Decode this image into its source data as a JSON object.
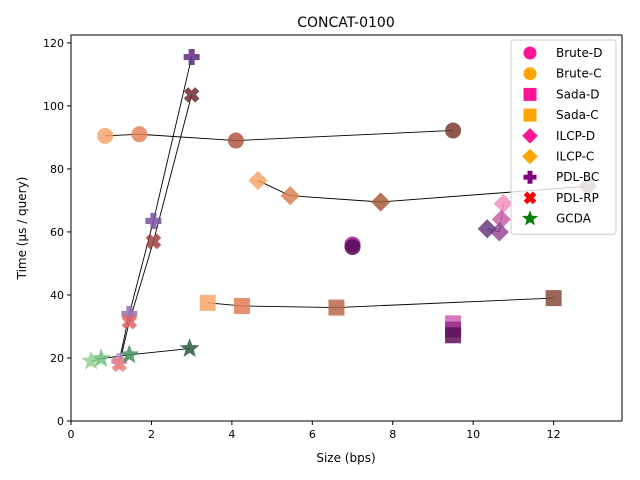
{
  "chart_data": {
    "type": "scatter",
    "title": "CONCAT-0100",
    "xlabel": "Size (bps)",
    "ylabel": "Time (µs / query)",
    "xlim": [
      0,
      13.7
    ],
    "ylim": [
      0,
      122.5
    ],
    "xticks": [
      0,
      2,
      4,
      6,
      8,
      10,
      12
    ],
    "yticks": [
      0,
      20,
      40,
      60,
      80,
      100,
      120
    ],
    "grid": false,
    "legend_position": "top-right",
    "legend": [
      {
        "label": "Brute-D",
        "marker": "circle",
        "color": "#ff1493"
      },
      {
        "label": "Brute-C",
        "marker": "circle",
        "color": "#ffa500"
      },
      {
        "label": "Sada-D",
        "marker": "square",
        "color": "#ff1493"
      },
      {
        "label": "Sada-C",
        "marker": "square",
        "color": "#ffa500"
      },
      {
        "label": "ILCP-D",
        "marker": "diamond",
        "color": "#ff1493"
      },
      {
        "label": "ILCP-C",
        "marker": "diamond",
        "color": "#ffa500"
      },
      {
        "label": "PDL-BC",
        "marker": "plus",
        "color": "#800080"
      },
      {
        "label": "PDL-RP",
        "marker": "x",
        "color": "#ff0000"
      },
      {
        "label": "GCDA",
        "marker": "star",
        "color": "#008000"
      }
    ],
    "series": [
      {
        "name": "Brute-D",
        "marker": "circle",
        "points": [
          [
            7.0,
            56.0,
            "#9e1b8e"
          ],
          [
            7.0,
            55.2,
            "#5a0a5a"
          ]
        ]
      },
      {
        "name": "Brute-C",
        "marker": "circle",
        "points": [
          [
            0.85,
            90.5,
            "#f4a46b"
          ],
          [
            1.7,
            91.0,
            "#e6855a"
          ],
          [
            4.1,
            89.0,
            "#b0583f"
          ],
          [
            9.5,
            92.2,
            "#7a3a30"
          ]
        ]
      },
      {
        "name": "Sada-D",
        "marker": "square",
        "points": [
          [
            9.5,
            31.0,
            "#d062b5"
          ],
          [
            9.5,
            29.0,
            "#9a2a88"
          ],
          [
            9.5,
            27.2,
            "#5a1058"
          ]
        ]
      },
      {
        "name": "Sada-C",
        "marker": "square",
        "points": [
          [
            3.4,
            37.5,
            "#f6a56a"
          ],
          [
            4.25,
            36.5,
            "#e07d52"
          ],
          [
            6.6,
            36.0,
            "#b86848"
          ],
          [
            12.0,
            39.0,
            "#8a4a3a"
          ]
        ]
      },
      {
        "name": "ILCP-D",
        "marker": "diamond",
        "points": [
          [
            10.75,
            69.0,
            "#f090c0"
          ],
          [
            10.7,
            64.0,
            "#c860a8"
          ],
          [
            10.65,
            60.0,
            "#9a4a96"
          ],
          [
            10.35,
            61.0,
            "#6a3a80"
          ]
        ]
      },
      {
        "name": "ILCP-C",
        "marker": "diamond",
        "points": [
          [
            4.65,
            76.3,
            "#f4a46a"
          ],
          [
            5.45,
            71.5,
            "#d8804e"
          ],
          [
            7.7,
            69.5,
            "#a85a3a"
          ],
          [
            12.85,
            74.5,
            "#7a5a4a"
          ]
        ]
      },
      {
        "name": "PDL-BC",
        "marker": "plus",
        "points": [
          [
            1.2,
            19.0,
            "#c090d0"
          ],
          [
            1.45,
            34.0,
            "#9a70b8"
          ],
          [
            2.05,
            63.5,
            "#7a50a0"
          ],
          [
            3.0,
            115.5,
            "#5a2a80"
          ]
        ]
      },
      {
        "name": "PDL-RP",
        "marker": "x",
        "points": [
          [
            1.2,
            18.0,
            "#f08080"
          ],
          [
            1.45,
            31.5,
            "#e06060"
          ],
          [
            2.05,
            57.0,
            "#a04040"
          ],
          [
            3.0,
            103.5,
            "#6a2a30"
          ]
        ]
      },
      {
        "name": "GCDA",
        "marker": "star",
        "points": [
          [
            0.5,
            19.0,
            "#90d090"
          ],
          [
            0.75,
            19.8,
            "#70c080"
          ],
          [
            1.45,
            21.0,
            "#409060"
          ],
          [
            2.95,
            23.0,
            "#2a5a40"
          ]
        ]
      }
    ]
  }
}
